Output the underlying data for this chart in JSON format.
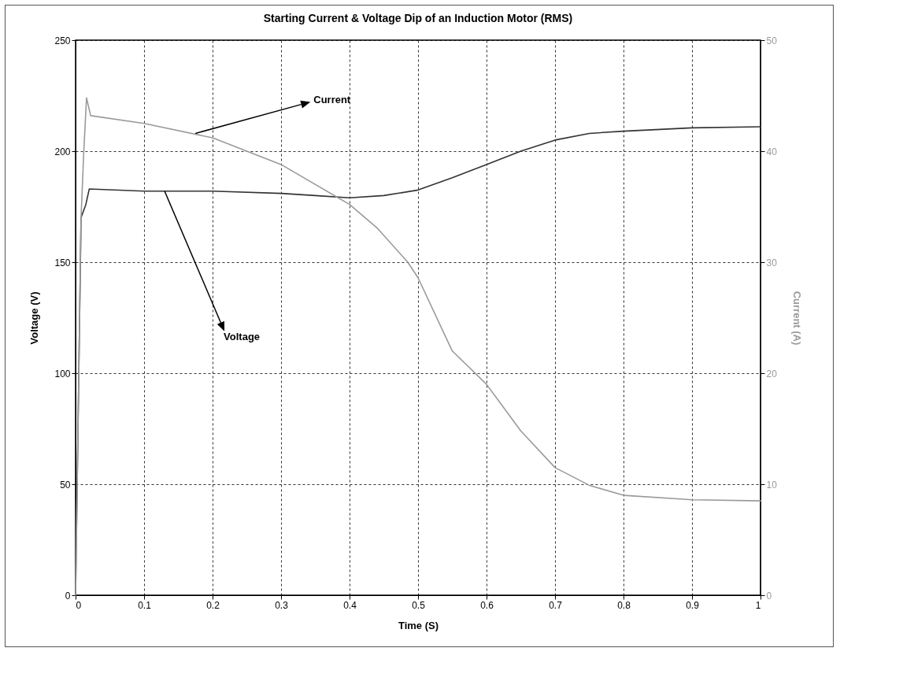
{
  "chart_data": {
    "type": "line",
    "title": "Starting Current & Voltage Dip of an Induction Motor (RMS)",
    "xlabel": "Time (S)",
    "ylabel": "Voltage (V)",
    "y2label": "Current (A)",
    "xlim": [
      0,
      1
    ],
    "xticks": [
      0,
      0.1,
      0.2,
      0.3,
      0.4,
      0.5,
      0.6,
      0.7,
      0.8,
      0.9,
      1
    ],
    "ylim": [
      0,
      250
    ],
    "yticks": [
      0,
      50,
      100,
      150,
      200,
      250
    ],
    "y2lim": [
      0,
      50
    ],
    "y2ticks": [
      0,
      10,
      20,
      30,
      40,
      50
    ],
    "grid": true,
    "line_style": "solid",
    "series": [
      {
        "color": "#333333",
        "x": [
          0,
          0.008,
          0.015,
          0.02,
          0.1,
          0.2,
          0.3,
          0.35,
          0.4,
          0.45,
          0.5,
          0.55,
          0.6,
          0.65,
          0.7,
          0.75,
          0.8,
          0.9,
          1
        ],
        "values": [
          0,
          170,
          176,
          183,
          182,
          182,
          181,
          180,
          179,
          180,
          182.5,
          188,
          194,
          200,
          205,
          208,
          209,
          210.5,
          211
        ]
      },
      {
        "color": "#9a9a9a",
        "axis": "y2",
        "x": [
          0,
          0.008,
          0.012,
          0.016,
          0.022,
          0.1,
          0.2,
          0.3,
          0.4,
          0.44,
          0.485,
          0.5,
          0.55,
          0.6,
          0.65,
          0.7,
          0.75,
          0.8,
          0.9,
          1
        ],
        "values": [
          0,
          34,
          40,
          44.8,
          43.2,
          42.5,
          41.2,
          38.8,
          35.2,
          33.1,
          30,
          28.6,
          22,
          19,
          14.8,
          11.5,
          9.9,
          9,
          8.6,
          8.5
        ]
      }
    ],
    "annotations": [
      {
        "text": "Current",
        "x": 0.175,
        "y": 208
      },
      {
        "text": "Voltage",
        "x": 0.13,
        "y": 182
      }
    ]
  }
}
